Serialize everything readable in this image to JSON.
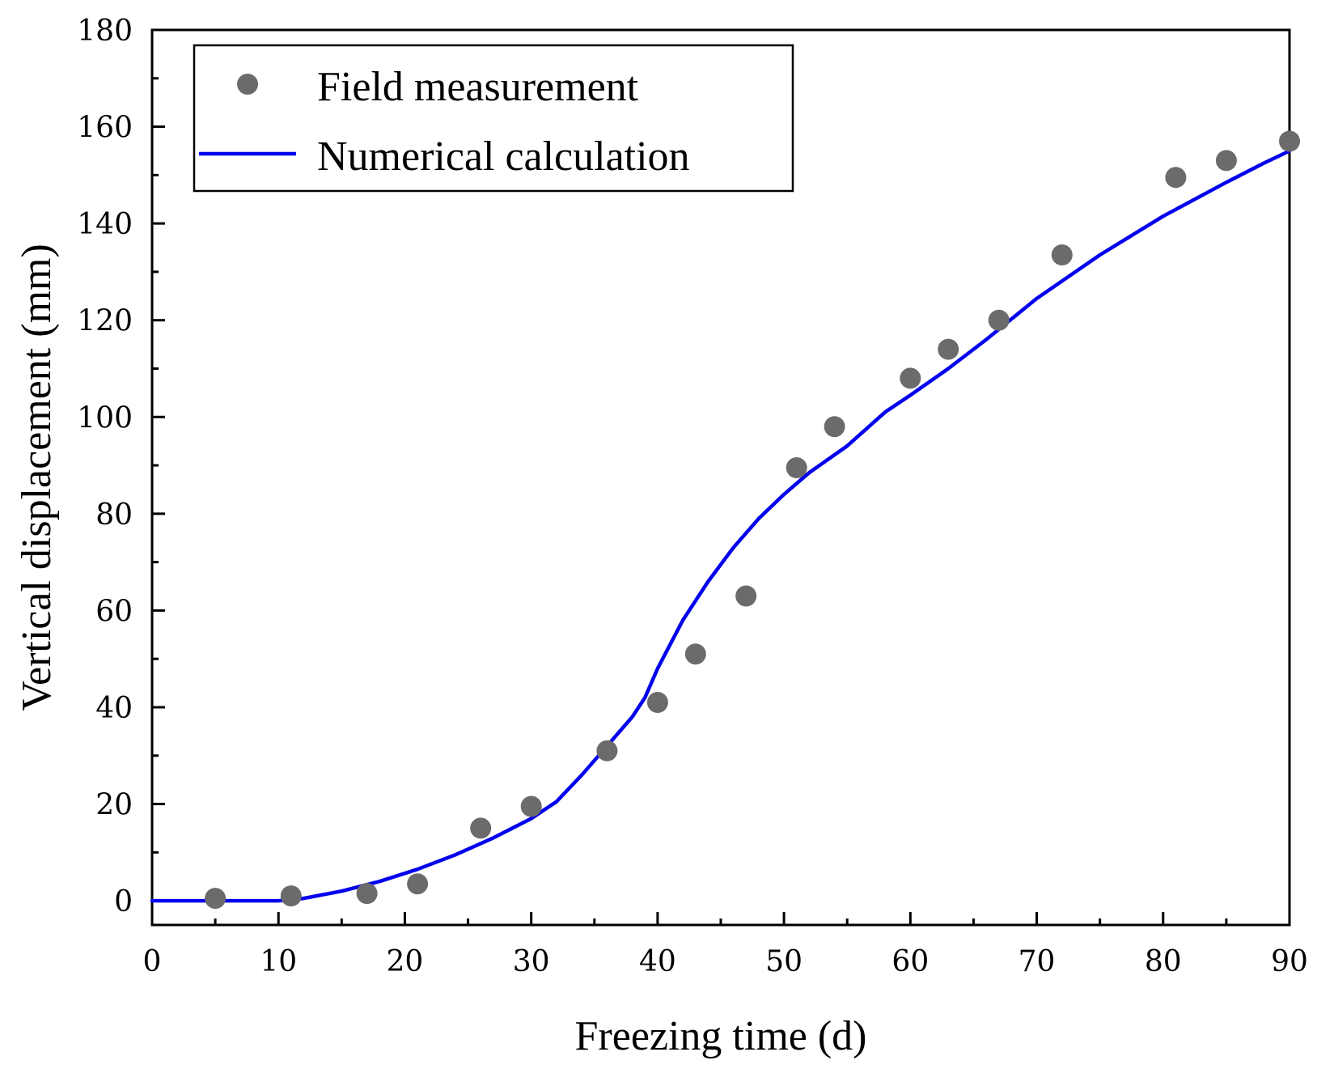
{
  "chart_data": {
    "type": "line",
    "title": "",
    "xlabel": "Freezing time (d)",
    "ylabel": "Vertical displacement (mm)",
    "xlim": [
      0,
      90
    ],
    "ylim": [
      -5,
      180
    ],
    "xticks": [
      0,
      10,
      20,
      30,
      40,
      50,
      60,
      70,
      80,
      90
    ],
    "yticks": [
      0,
      20,
      40,
      60,
      80,
      100,
      120,
      140,
      160,
      180
    ],
    "grid": false,
    "legend_position": "top-left",
    "series": [
      {
        "name": "Field measurement",
        "kind": "scatter",
        "color": "#6b6b6b",
        "x": [
          5,
          11,
          17,
          21,
          26,
          30,
          36,
          40,
          43,
          47,
          51,
          54,
          60,
          63,
          67,
          72,
          81,
          85,
          90
        ],
        "y": [
          0.5,
          1,
          1.5,
          3.5,
          15,
          19.5,
          31,
          41,
          51,
          63,
          89.5,
          98,
          108,
          114,
          120,
          133.5,
          149.5,
          153,
          157
        ]
      },
      {
        "name": "Numerical calculation",
        "kind": "line",
        "color": "#0000ee",
        "x": [
          0,
          5,
          10,
          12,
          15,
          18,
          21,
          24,
          27,
          30,
          32,
          34,
          36,
          38,
          39,
          40,
          42,
          44,
          46,
          48,
          50,
          52,
          55,
          58,
          60,
          63,
          66,
          70,
          75,
          80,
          85,
          88,
          90
        ],
        "y": [
          0,
          0,
          0,
          0.5,
          2,
          4,
          6.5,
          9.5,
          13,
          17,
          20.5,
          26,
          32,
          38,
          42,
          48,
          58,
          66,
          73,
          79,
          84,
          88.5,
          94,
          101,
          104.5,
          110,
          116,
          124.5,
          133.5,
          141.5,
          148.5,
          152.5,
          155
        ]
      }
    ]
  }
}
